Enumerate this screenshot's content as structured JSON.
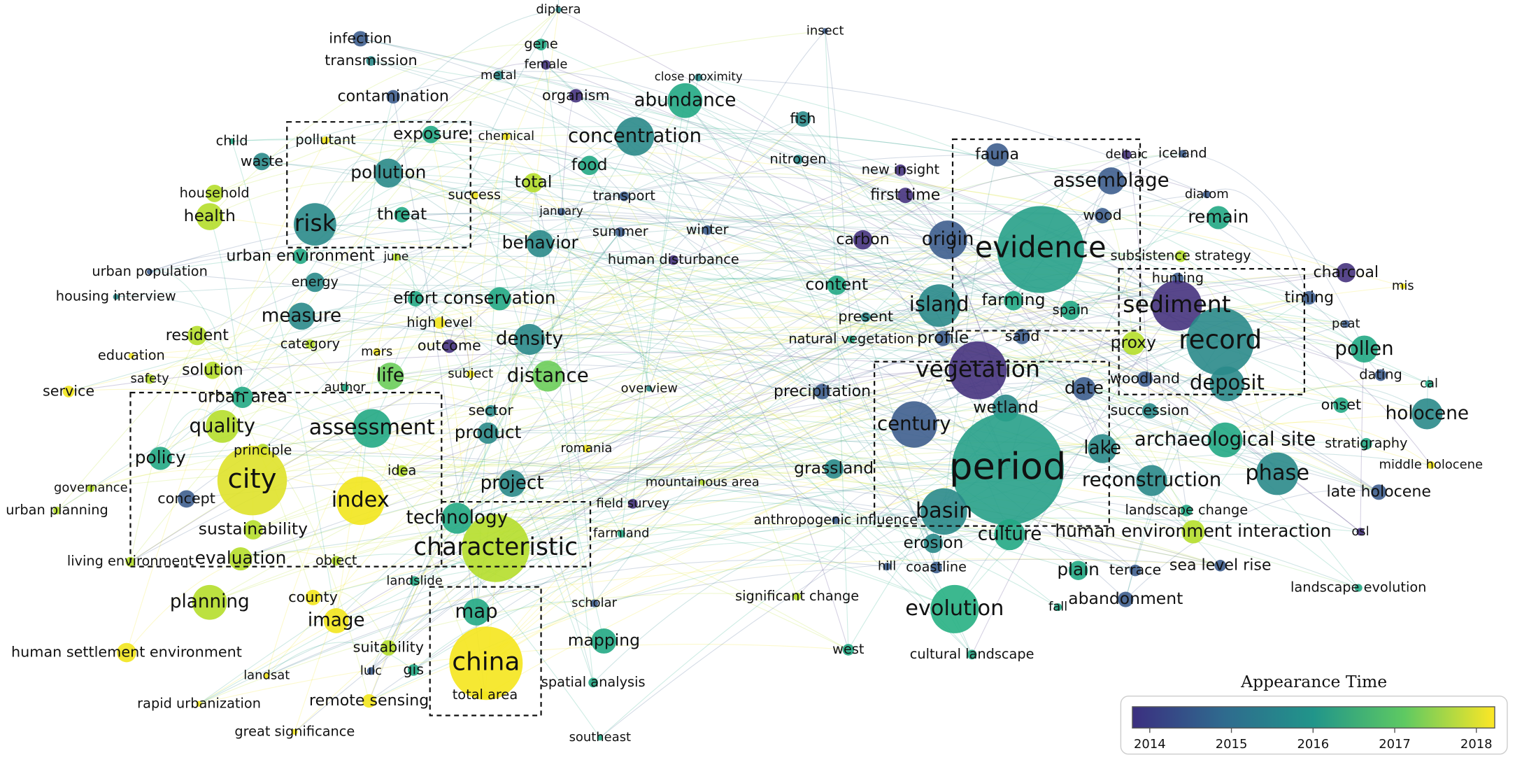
{
  "nodes": [
    {
      "label": "diptera",
      "color": "#2a8a8a"
    },
    {
      "label": "insect",
      "color": "#3e5e8e"
    },
    {
      "label": "infection",
      "color": "#3e5e8e"
    },
    {
      "label": "gene",
      "color": "#22a884"
    },
    {
      "label": "transmission",
      "color": "#2a8a8a"
    },
    {
      "label": "female",
      "color": "#46337e"
    },
    {
      "label": "metal",
      "color": "#2a8a8a"
    },
    {
      "label": "close proximity",
      "color": "#2a8a8a"
    },
    {
      "label": "organism",
      "color": "#46337e"
    },
    {
      "label": "abundance",
      "color": "#22a884"
    },
    {
      "label": "contamination",
      "color": "#3e5e8e"
    },
    {
      "label": "fish",
      "color": "#2a8a8a"
    },
    {
      "label": "concentration",
      "color": "#2a8a8a"
    },
    {
      "label": "chemical",
      "color": "#f2e51d"
    },
    {
      "label": "exposure",
      "color": "#22a884"
    },
    {
      "label": "pollutant",
      "color": "#f2e51d"
    },
    {
      "label": "child",
      "color": "#22a884"
    },
    {
      "label": "nitrogen",
      "color": "#2a8a8a"
    },
    {
      "label": "food",
      "color": "#22a884"
    },
    {
      "label": "waste",
      "color": "#2a8a8a"
    },
    {
      "label": "pollution",
      "color": "#2a8a8a"
    },
    {
      "label": "total",
      "color": "#b5de2b"
    },
    {
      "label": "transport",
      "color": "#3e5e8e"
    },
    {
      "label": "success",
      "color": "#f2e51d"
    },
    {
      "label": "household",
      "color": "#b5de2b"
    },
    {
      "label": "january",
      "color": "#3e5e8e"
    },
    {
      "label": "threat",
      "color": "#22a884"
    },
    {
      "label": "risk",
      "color": "#2a8a8a"
    },
    {
      "label": "health",
      "color": "#b5de2b"
    },
    {
      "label": "summer",
      "color": "#3e5e8e"
    },
    {
      "label": "winter",
      "color": "#3e5e8e"
    },
    {
      "label": "behavior",
      "color": "#2a8a8a"
    },
    {
      "label": "urban environment",
      "color": "#22a884"
    },
    {
      "label": "june",
      "color": "#b5de2b"
    },
    {
      "label": "human disturbance",
      "color": "#46337e"
    },
    {
      "label": "urban population",
      "color": "#3e5e8e"
    },
    {
      "label": "energy",
      "color": "#2a8a8a"
    },
    {
      "label": "housing interview",
      "color": "#2a8a8a"
    },
    {
      "label": "effort",
      "color": "#22a884"
    },
    {
      "label": "conservation",
      "color": "#22a884"
    },
    {
      "label": "measure",
      "color": "#2a8a8a"
    },
    {
      "label": "high level",
      "color": "#f2e51d"
    },
    {
      "label": "resident",
      "color": "#b5de2b"
    },
    {
      "label": "category",
      "color": "#b5de2b"
    },
    {
      "label": "mars",
      "color": "#f2e51d"
    },
    {
      "label": "outcome",
      "color": "#46337e"
    },
    {
      "label": "density",
      "color": "#2a8a8a"
    },
    {
      "label": "education",
      "color": "#f2e51d"
    },
    {
      "label": "life",
      "color": "#6ccd5a"
    },
    {
      "label": "solution",
      "color": "#b5de2b"
    },
    {
      "label": "subject",
      "color": "#f2e51d"
    },
    {
      "label": "distance",
      "color": "#6ccd5a"
    },
    {
      "label": "safety",
      "color": "#b5de2b"
    },
    {
      "label": "service",
      "color": "#f2e51d"
    },
    {
      "label": "author",
      "color": "#22a884"
    },
    {
      "label": "overview",
      "color": "#2a8a8a"
    },
    {
      "label": "urban area",
      "color": "#22a884"
    },
    {
      "label": "sector",
      "color": "#2a8a8a"
    },
    {
      "label": "quality",
      "color": "#b5de2b"
    },
    {
      "label": "assessment",
      "color": "#22a884"
    },
    {
      "label": "product",
      "color": "#2a8a8a"
    },
    {
      "label": "policy",
      "color": "#22a884"
    },
    {
      "label": "principle",
      "color": "#b5de2b"
    },
    {
      "label": "romania",
      "color": "#f2e51d"
    },
    {
      "label": "city",
      "color": "#dfe22a"
    },
    {
      "label": "idea",
      "color": "#b5de2b"
    },
    {
      "label": "governance",
      "color": "#b5de2b"
    },
    {
      "label": "project",
      "color": "#2a8a8a"
    },
    {
      "label": "mountainous area",
      "color": "#b5de2b"
    },
    {
      "label": "index",
      "color": "#f2e51d"
    },
    {
      "label": "concept",
      "color": "#3e5e8e"
    },
    {
      "label": "urban planning",
      "color": "#b5de2b"
    },
    {
      "label": "field survey",
      "color": "#46337e"
    },
    {
      "label": "technology",
      "color": "#22a884"
    },
    {
      "label": "sustainability",
      "color": "#b5de2b"
    },
    {
      "label": "characteristic",
      "color": "#b5de2b"
    },
    {
      "label": "farmland",
      "color": "#22a884"
    },
    {
      "label": "living environment",
      "color": "#b5de2b"
    },
    {
      "label": "evaluation",
      "color": "#b5de2b"
    },
    {
      "label": "object",
      "color": "#b5de2b"
    },
    {
      "label": "landslide",
      "color": "#22a884"
    },
    {
      "label": "county",
      "color": "#f2e51d"
    },
    {
      "label": "planning",
      "color": "#b5de2b"
    },
    {
      "label": "scholar",
      "color": "#3e5e8e"
    },
    {
      "label": "map",
      "color": "#22a884"
    },
    {
      "label": "image",
      "color": "#f2e51d"
    },
    {
      "label": "mapping",
      "color": "#22a884"
    },
    {
      "label": "suitability",
      "color": "#b5de2b"
    },
    {
      "label": "human settlement environment",
      "color": "#f2e51d"
    },
    {
      "label": "china",
      "color": "#f5e51d"
    },
    {
      "label": "lulc",
      "color": "#3e5e8e"
    },
    {
      "label": "gis",
      "color": "#22a884"
    },
    {
      "label": "landsat",
      "color": "#f2e51d"
    },
    {
      "label": "spatial analysis",
      "color": "#22a884"
    },
    {
      "label": "total area",
      "color": "#f2e51d"
    },
    {
      "label": "remote sensing",
      "color": "#f2e51d"
    },
    {
      "label": "rapid urbanization",
      "color": "#f2e51d"
    },
    {
      "label": "great significance",
      "color": "#f2e51d"
    },
    {
      "label": "southeast",
      "color": "#22a884"
    },
    {
      "label": "new insight",
      "color": "#46337e"
    },
    {
      "label": "fauna",
      "color": "#3e5e8e"
    },
    {
      "label": "deltaic",
      "color": "#46337e"
    },
    {
      "label": "iceland",
      "color": "#3e5e8e"
    },
    {
      "label": "assemblage",
      "color": "#3e5e8e"
    },
    {
      "label": "first time",
      "color": "#46337e"
    },
    {
      "label": "diatom",
      "color": "#3e5e8e"
    },
    {
      "label": "wood",
      "color": "#3e5e8e"
    },
    {
      "label": "carbon",
      "color": "#46337e"
    },
    {
      "label": "origin",
      "color": "#3e5e8e"
    },
    {
      "label": "evidence",
      "color": "#27a088"
    },
    {
      "label": "remain",
      "color": "#22a884"
    },
    {
      "label": "subsistence strategy",
      "color": "#b5de2b"
    },
    {
      "label": "charcoal",
      "color": "#46337e"
    },
    {
      "label": "hunting",
      "color": "#3e5e8e"
    },
    {
      "label": "mis",
      "color": "#f2e51d"
    },
    {
      "label": "content",
      "color": "#22a884"
    },
    {
      "label": "farming",
      "color": "#22a884"
    },
    {
      "label": "island",
      "color": "#2a8a8a"
    },
    {
      "label": "timing",
      "color": "#3e5e8e"
    },
    {
      "label": "sediment",
      "color": "#46337e"
    },
    {
      "label": "spain",
      "color": "#22a884"
    },
    {
      "label": "present",
      "color": "#2a8a8a"
    },
    {
      "label": "peat",
      "color": "#3e5e8e"
    },
    {
      "label": "natural vegetation",
      "color": "#22a884"
    },
    {
      "label": "profile",
      "color": "#3e5e8e"
    },
    {
      "label": "sand",
      "color": "#3e5e8e"
    },
    {
      "label": "proxy",
      "color": "#b5de2b"
    },
    {
      "label": "record",
      "color": "#2a8a8a"
    },
    {
      "label": "pollen",
      "color": "#22a884"
    },
    {
      "label": "dating",
      "color": "#3e5e8e"
    },
    {
      "label": "vegetation",
      "color": "#46337e"
    },
    {
      "label": "woodland",
      "color": "#3e5e8e"
    },
    {
      "label": "deposit",
      "color": "#2a8a8a"
    },
    {
      "label": "cal",
      "color": "#22a884"
    },
    {
      "label": "precipitation",
      "color": "#3e5e8e"
    },
    {
      "label": "date",
      "color": "#3e5e8e"
    },
    {
      "label": "onset",
      "color": "#22a884"
    },
    {
      "label": "wetland",
      "color": "#2a8a8a"
    },
    {
      "label": "succession",
      "color": "#2a8a8a"
    },
    {
      "label": "holocene",
      "color": "#2a8a8a"
    },
    {
      "label": "century",
      "color": "#3e5e8e"
    },
    {
      "label": "archaeological site",
      "color": "#22a884"
    },
    {
      "label": "lake",
      "color": "#2a8a8a"
    },
    {
      "label": "stratigraphy",
      "color": "#22a884"
    },
    {
      "label": "middle holocene",
      "color": "#f2e51d"
    },
    {
      "label": "grassland",
      "color": "#2a8a8a"
    },
    {
      "label": "period",
      "color": "#27a088"
    },
    {
      "label": "phase",
      "color": "#2a8a8a"
    },
    {
      "label": "reconstruction",
      "color": "#2a8a8a"
    },
    {
      "label": "late holocene",
      "color": "#3e5e8e"
    },
    {
      "label": "basin",
      "color": "#2a8a8a"
    },
    {
      "label": "landscape change",
      "color": "#22a884"
    },
    {
      "label": "anthropogenic influence",
      "color": "#3e5e8e"
    },
    {
      "label": "culture",
      "color": "#22a884"
    },
    {
      "label": "human environment interaction",
      "color": "#b5de2b"
    },
    {
      "label": "osl",
      "color": "#46337e"
    },
    {
      "label": "erosion",
      "color": "#2a8a8a"
    },
    {
      "label": "hill",
      "color": "#3e5e8e"
    },
    {
      "label": "coastline",
      "color": "#3e5e8e"
    },
    {
      "label": "plain",
      "color": "#22a884"
    },
    {
      "label": "terrace",
      "color": "#3e5e8e"
    },
    {
      "label": "sea level rise",
      "color": "#3e5e8e"
    },
    {
      "label": "landscape evolution",
      "color": "#22a884"
    },
    {
      "label": "significant change",
      "color": "#b5de2b"
    },
    {
      "label": "fall",
      "color": "#22a884"
    },
    {
      "label": "abandonment",
      "color": "#3e5e8e"
    },
    {
      "label": "evolution",
      "color": "#27b083"
    },
    {
      "label": "west",
      "color": "#22a884"
    },
    {
      "label": "cultural landscape",
      "color": "#22a884"
    }
  ],
  "legend": {
    "title": "Appearance Time",
    "ticks": [
      2014,
      2015,
      2016,
      2017,
      2018
    ]
  }
}
